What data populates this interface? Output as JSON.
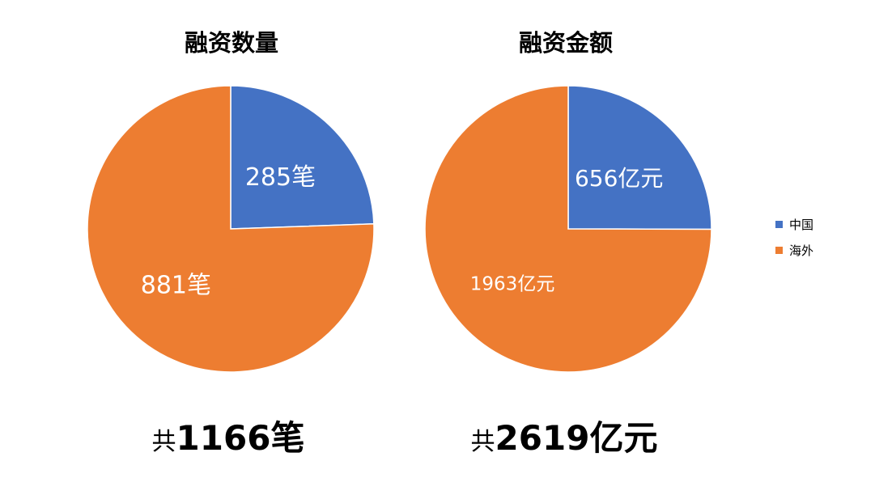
{
  "chart_data": [
    {
      "type": "pie",
      "title": "融资数量",
      "categories": [
        "中国",
        "海外"
      ],
      "values": [
        285,
        881
      ],
      "labels": [
        "285笔",
        "881笔"
      ],
      "colors": [
        "#4472C4",
        "#ED7D31"
      ],
      "total_prefix": "共",
      "total_value": "1166笔"
    },
    {
      "type": "pie",
      "title": "融资金额",
      "categories": [
        "中国",
        "海外"
      ],
      "values": [
        656,
        1963
      ],
      "labels": [
        "656亿元",
        "1963亿元"
      ],
      "colors": [
        "#4472C4",
        "#ED7D31"
      ],
      "total_prefix": "共",
      "total_value": "2619亿元"
    }
  ],
  "legend": {
    "placement": "right",
    "items": [
      {
        "label": "中国",
        "color": "#4472C4"
      },
      {
        "label": "海外",
        "color": "#ED7D31"
      }
    ]
  }
}
